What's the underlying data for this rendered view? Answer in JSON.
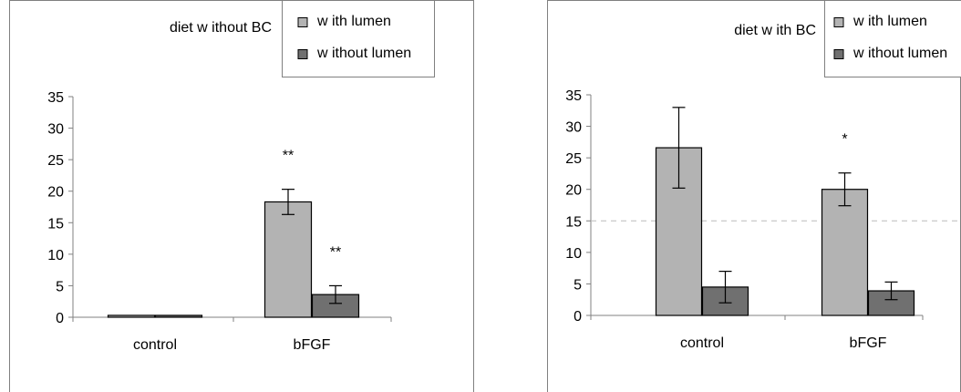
{
  "chart_data": [
    {
      "type": "bar",
      "title": "diet w ithout BC",
      "categories": [
        "control",
        "bFGF"
      ],
      "ylim": [
        0,
        35
      ],
      "yticks": [
        0,
        5,
        10,
        15,
        20,
        25,
        30,
        35
      ],
      "grid": false,
      "legend": "top-right",
      "series": [
        {
          "name": "w ith lumen",
          "color": "#b3b3b3",
          "values": [
            0.3,
            18.3
          ],
          "errors": [
            0,
            2.0
          ]
        },
        {
          "name": "w ithout lumen",
          "color": "#707070",
          "values": [
            0.3,
            3.6
          ],
          "errors": [
            0,
            1.4
          ]
        }
      ],
      "annotations": [
        {
          "category": "bFGF",
          "series": 0,
          "text": "**"
        },
        {
          "category": "bFGF",
          "series": 1,
          "text": "**"
        }
      ]
    },
    {
      "type": "bar",
      "title": "diet w ith BC",
      "categories": [
        "control",
        "bFGF"
      ],
      "ylim": [
        0,
        35
      ],
      "yticks": [
        0,
        5,
        10,
        15,
        20,
        25,
        30,
        35
      ],
      "grid": false,
      "reference_line": 15,
      "legend": "top-right",
      "series": [
        {
          "name": "w ith lumen",
          "color": "#b3b3b3",
          "values": [
            26.6,
            20.0
          ],
          "errors": [
            6.4,
            2.6
          ]
        },
        {
          "name": "w ithout lumen",
          "color": "#707070",
          "values": [
            4.5,
            3.9
          ],
          "errors": [
            2.5,
            1.4
          ]
        }
      ],
      "annotations": [
        {
          "category": "bFGF",
          "series": 0,
          "text": "*"
        }
      ]
    }
  ]
}
